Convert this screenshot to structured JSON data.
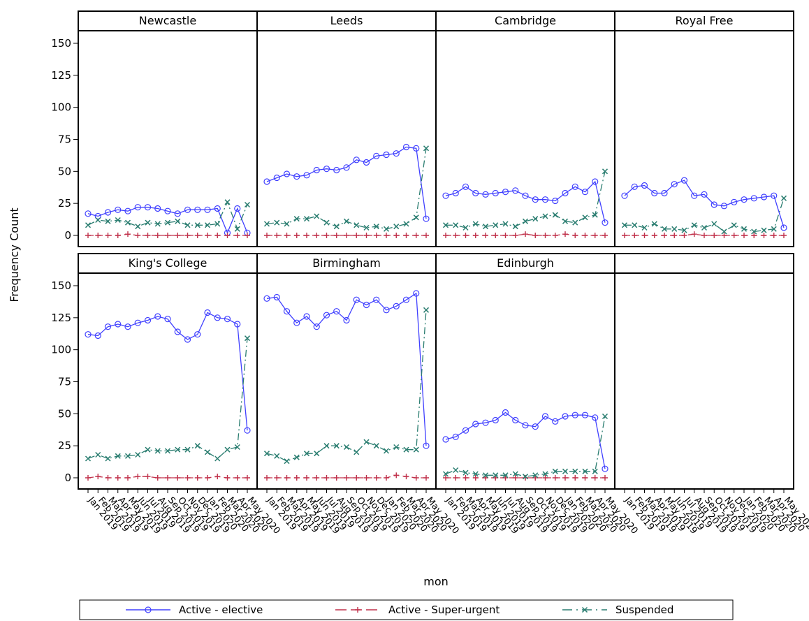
{
  "chart_data": {
    "type": "line",
    "ylabel": "Frequency Count",
    "xlabel": "mon",
    "ylim": [
      0,
      150
    ],
    "yticks": [
      0,
      25,
      50,
      75,
      100,
      125,
      150
    ],
    "grid": false,
    "legend_position": "bottom",
    "x_tick_labels": [
      "Jan 2019",
      "Feb 2019",
      "Mar 2019",
      "Apr 2019",
      "May 2019",
      "Jun 2019",
      "Jul 2019",
      "Aug 2019",
      "Sep 2019",
      "Oct 2019",
      "Nov 2019",
      "Dec 2019",
      "Jan 2020",
      "Feb 2020",
      "Mar 2020",
      "Apr 2020",
      "May 2020"
    ],
    "legend": [
      {
        "name": "Active - elective",
        "color": "#4040ff",
        "marker": "circle",
        "dash": "solid"
      },
      {
        "name": "Active - Super-urgent",
        "color": "#c0304a",
        "marker": "plus",
        "dash": "dashed"
      },
      {
        "name": "Suspended",
        "color": "#2a7d70",
        "marker": "x",
        "dash": "dashdot"
      }
    ],
    "panels": [
      {
        "name": "Newcastle",
        "series": [
          {
            "name": "Active - elective",
            "values": [
              17,
              15,
              18,
              20,
              19,
              22,
              22,
              21,
              19,
              17,
              20,
              20,
              20,
              21,
              2,
              21,
              2
            ]
          },
          {
            "name": "Active - Super-urgent",
            "values": [
              0,
              0,
              0,
              0,
              1,
              0,
              0,
              0,
              0,
              0,
              0,
              0,
              0,
              0,
              0,
              0,
              0
            ]
          },
          {
            "name": "Suspended",
            "values": [
              8,
              12,
              11,
              12,
              10,
              7,
              10,
              9,
              10,
              11,
              8,
              8,
              8,
              9,
              26,
              5,
              24
            ]
          }
        ]
      },
      {
        "name": "Leeds",
        "series": [
          {
            "name": "Active - elective",
            "values": [
              42,
              45,
              48,
              46,
              47,
              51,
              52,
              51,
              53,
              59,
              57,
              62,
              63,
              64,
              69,
              68,
              13
            ]
          },
          {
            "name": "Active - Super-urgent",
            "values": [
              0,
              0,
              0,
              0,
              0,
              0,
              0,
              0,
              0,
              0,
              0,
              0,
              0,
              0,
              0,
              0,
              0
            ]
          },
          {
            "name": "Suspended",
            "values": [
              9,
              10,
              9,
              13,
              13,
              15,
              10,
              7,
              11,
              8,
              6,
              7,
              5,
              7,
              9,
              14,
              68
            ]
          }
        ]
      },
      {
        "name": "Cambridge",
        "series": [
          {
            "name": "Active - elective",
            "values": [
              31,
              33,
              38,
              33,
              32,
              33,
              34,
              35,
              31,
              28,
              28,
              27,
              33,
              38,
              34,
              42,
              10
            ]
          },
          {
            "name": "Active - Super-urgent",
            "values": [
              0,
              0,
              0,
              0,
              0,
              0,
              0,
              0,
              1,
              0,
              0,
              0,
              1,
              0,
              0,
              0,
              0
            ]
          },
          {
            "name": "Suspended",
            "values": [
              8,
              8,
              6,
              9,
              7,
              8,
              9,
              7,
              11,
              13,
              15,
              16,
              11,
              10,
              14,
              16,
              50
            ]
          }
        ]
      },
      {
        "name": "Royal Free",
        "series": [
          {
            "name": "Active - elective",
            "values": [
              31,
              38,
              39,
              33,
              33,
              40,
              43,
              31,
              32,
              24,
              23,
              26,
              28,
              29,
              30,
              31,
              6
            ]
          },
          {
            "name": "Active - Super-urgent",
            "values": [
              0,
              0,
              0,
              0,
              0,
              0,
              0,
              1,
              0,
              0,
              0,
              0,
              0,
              0,
              0,
              0,
              0
            ]
          },
          {
            "name": "Suspended",
            "values": [
              8,
              8,
              6,
              9,
              5,
              5,
              4,
              8,
              6,
              9,
              3,
              8,
              5,
              3,
              4,
              5,
              29
            ]
          }
        ]
      },
      {
        "name": "King's College",
        "series": [
          {
            "name": "Active - elective",
            "values": [
              112,
              111,
              118,
              120,
              118,
              121,
              123,
              126,
              124,
              114,
              108,
              112,
              129,
              125,
              124,
              120,
              37
            ]
          },
          {
            "name": "Active - Super-urgent",
            "values": [
              0,
              1,
              0,
              0,
              0,
              1,
              1,
              0,
              0,
              0,
              0,
              0,
              0,
              1,
              0,
              0,
              0
            ]
          },
          {
            "name": "Suspended",
            "values": [
              15,
              18,
              15,
              17,
              17,
              18,
              22,
              21,
              21,
              22,
              22,
              25,
              20,
              15,
              22,
              24,
              109
            ]
          }
        ]
      },
      {
        "name": "Birmingham",
        "series": [
          {
            "name": "Active - elective",
            "values": [
              140,
              141,
              130,
              121,
              126,
              118,
              127,
              130,
              123,
              139,
              135,
              139,
              131,
              134,
              139,
              144,
              25
            ]
          },
          {
            "name": "Active - Super-urgent",
            "values": [
              0,
              0,
              0,
              0,
              0,
              0,
              0,
              0,
              0,
              0,
              0,
              0,
              0,
              2,
              1,
              0,
              0
            ]
          },
          {
            "name": "Suspended",
            "values": [
              19,
              17,
              13,
              16,
              19,
              19,
              25,
              25,
              24,
              20,
              28,
              25,
              21,
              24,
              22,
              22,
              131
            ]
          }
        ]
      },
      {
        "name": "Edinburgh",
        "series": [
          {
            "name": "Active - elective",
            "values": [
              30,
              32,
              37,
              42,
              43,
              45,
              51,
              45,
              41,
              40,
              48,
              44,
              48,
              49,
              49,
              47,
              7
            ]
          },
          {
            "name": "Active - Super-urgent",
            "values": [
              0,
              0,
              0,
              0,
              0,
              0,
              0,
              0,
              0,
              0,
              0,
              0,
              0,
              0,
              0,
              0,
              0
            ]
          },
          {
            "name": "Suspended",
            "values": [
              3,
              6,
              4,
              3,
              2,
              2,
              2,
              3,
              1,
              2,
              3,
              5,
              5,
              5,
              5,
              5,
              48
            ]
          }
        ]
      },
      {
        "name": "",
        "series": []
      }
    ]
  }
}
